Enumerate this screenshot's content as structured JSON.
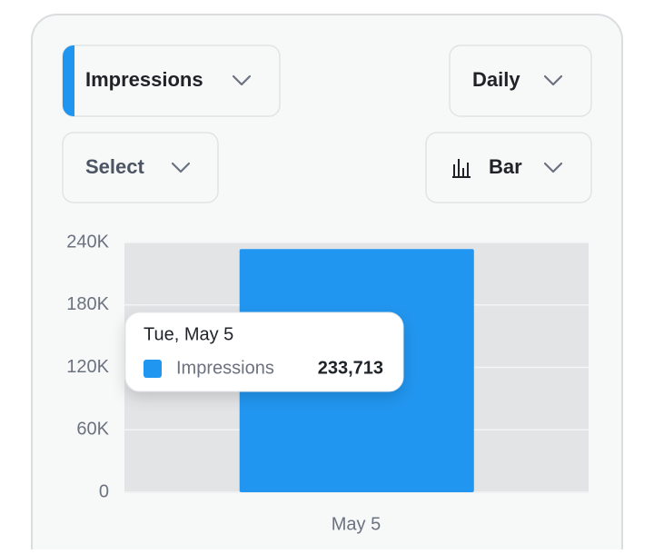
{
  "controls": {
    "metric": "Impressions",
    "interval": "Daily",
    "compare": "Select",
    "chart_type": "Bar"
  },
  "chart_data": {
    "type": "bar",
    "categories": [
      "May 5"
    ],
    "series": [
      {
        "name": "Impressions",
        "color": "#2196f0",
        "values": [
          233713
        ],
        "value_labels": [
          "233,713"
        ]
      }
    ],
    "ylim": [
      0,
      240000
    ],
    "yticks": [
      0,
      {
        "value": 60000,
        "label": "60K"
      },
      {
        "value": 120000,
        "label": "120K"
      },
      {
        "value": 180000,
        "label": "180K"
      },
      {
        "value": 240000,
        "label": "240K"
      }
    ],
    "grid": true,
    "tooltip": {
      "title": "Tue, May 5"
    }
  }
}
